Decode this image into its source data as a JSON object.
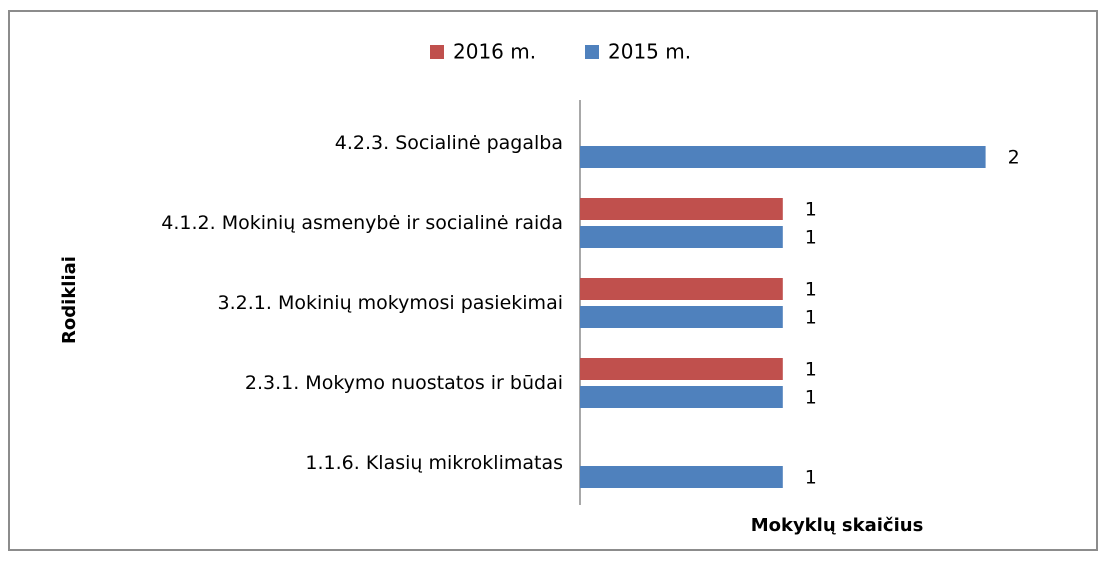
{
  "chart_data": {
    "type": "bar",
    "orientation": "horizontal",
    "x_label": "Mokyklų skaičius",
    "y_label": "Rodikliai",
    "categories": [
      "4.2.3. Socialinė pagalba",
      "4.1.2. Mokinių asmenybė ir socialinė raida",
      "3.2.1. Mokinių mokymosi pasiekimai",
      "2.3.1. Mokymo nuostatos ir būdai",
      "1.1.6. Klasių mikroklimatas"
    ],
    "series": [
      {
        "name": "2016 m.",
        "color": "#c0504d",
        "values": [
          null,
          1,
          1,
          1,
          null
        ]
      },
      {
        "name": "2015 m.",
        "color": "#4f81bd",
        "values": [
          2,
          1,
          1,
          1,
          1
        ]
      }
    ],
    "xlim": [
      0,
      2.5
    ],
    "legend": "top",
    "grid": false
  }
}
